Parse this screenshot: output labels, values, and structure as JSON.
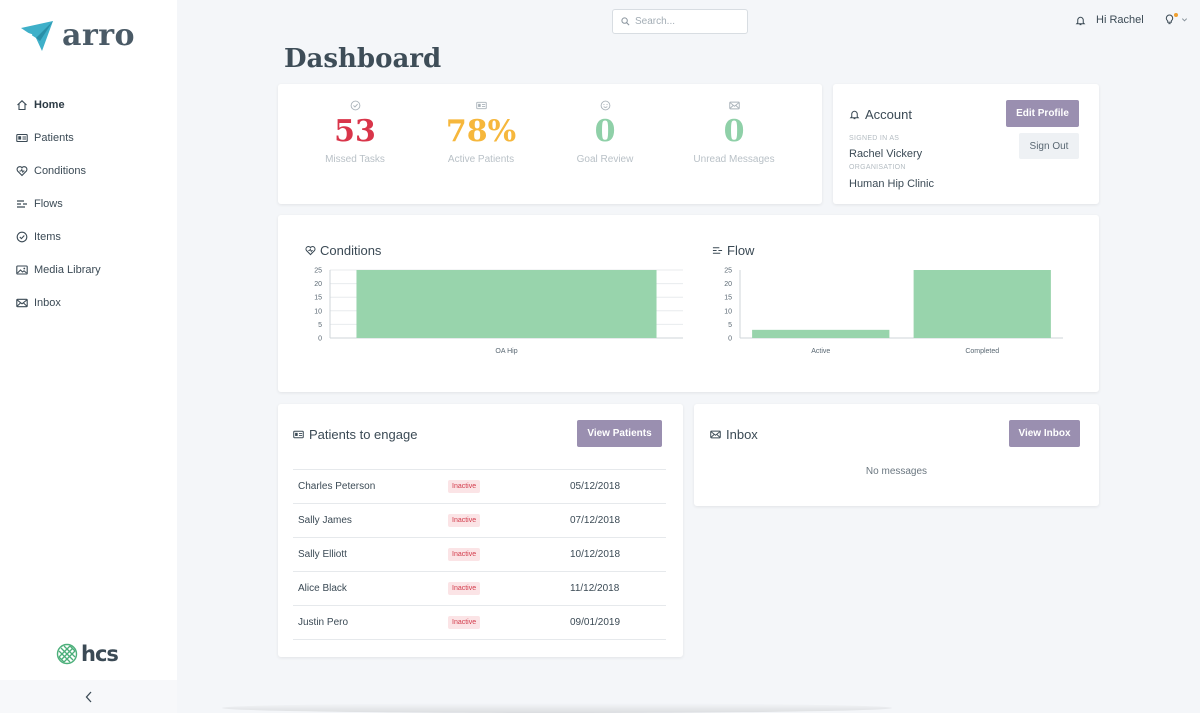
{
  "app": {
    "name": "arro",
    "partner": "hcs"
  },
  "sidebar": {
    "items": [
      {
        "label": "Home",
        "icon": "home-icon",
        "active": true
      },
      {
        "label": "Patients",
        "icon": "id-card-icon"
      },
      {
        "label": "Conditions",
        "icon": "heart-icon"
      },
      {
        "label": "Flows",
        "icon": "flow-icon"
      },
      {
        "label": "Items",
        "icon": "check-circle-icon"
      },
      {
        "label": "Media Library",
        "icon": "image-icon"
      },
      {
        "label": "Inbox",
        "icon": "mail-icon"
      }
    ],
    "collapse_icon": "chevron-left-icon"
  },
  "header": {
    "search_placeholder": "Search...",
    "greeting": "Hi Rachel",
    "accent": "#f0a030"
  },
  "page": {
    "title": "Dashboard"
  },
  "stats": [
    {
      "value": "53",
      "label": "Missed Tasks",
      "color": "#d9354a",
      "icon": "check-circle-icon"
    },
    {
      "value": "78%",
      "label": "Active Patients",
      "color": "#f6b73c",
      "icon": "id-card-icon"
    },
    {
      "value": "0",
      "label": "Goal Review",
      "color": "#8fd0a8",
      "icon": "smile-icon"
    },
    {
      "value": "0",
      "label": "Unread Messages",
      "color": "#8fd0a8",
      "icon": "mail-icon"
    }
  ],
  "account": {
    "title": "Account",
    "signed_in_as_label": "SIGNED IN AS",
    "signed_in_as": "Rachel Vickery",
    "organisation_label": "ORGANISATION",
    "organisation": "Human Hip Clinic",
    "edit_label": "Edit Profile",
    "signout_label": "Sign Out"
  },
  "chart_data": [
    {
      "type": "bar",
      "title": "Conditions",
      "categories": [
        "OA Hip"
      ],
      "values": [
        25
      ],
      "ylim": [
        0,
        25
      ],
      "yticks": [
        0,
        5,
        10,
        15,
        20,
        25
      ],
      "grid": true,
      "color": "#98d4ac"
    },
    {
      "type": "bar",
      "title": "Flow",
      "categories": [
        "Active",
        "Completed"
      ],
      "values": [
        3,
        25
      ],
      "ylim": [
        0,
        25
      ],
      "yticks": [
        0,
        5,
        10,
        15,
        20,
        25
      ],
      "grid": false,
      "color": "#98d4ac"
    }
  ],
  "patients": {
    "title": "Patients to engage",
    "button_label": "View Patients",
    "rows": [
      {
        "name": "Charles Peterson",
        "status": "Inactive",
        "date": "05/12/2018"
      },
      {
        "name": "Sally James",
        "status": "Inactive",
        "date": "07/12/2018"
      },
      {
        "name": "Sally Elliott",
        "status": "Inactive",
        "date": "10/12/2018"
      },
      {
        "name": "Alice Black",
        "status": "Inactive",
        "date": "11/12/2018"
      },
      {
        "name": "Justin Pero",
        "status": "Inactive",
        "date": "09/01/2019"
      }
    ]
  },
  "inbox": {
    "title": "Inbox",
    "button_label": "View Inbox",
    "empty_text": "No messages"
  }
}
